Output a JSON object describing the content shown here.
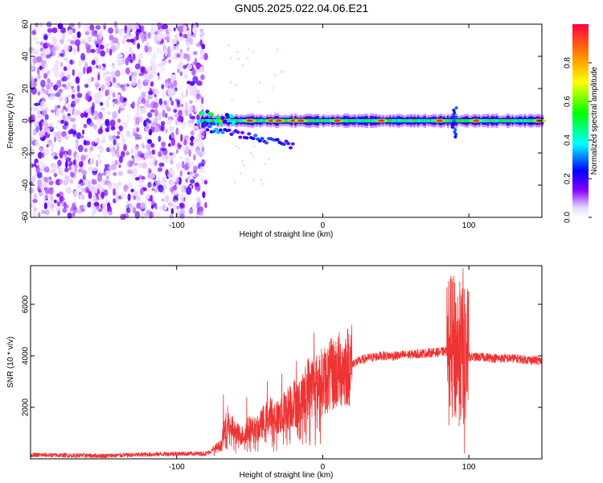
{
  "title": "GN05.2025.022.04.06.E21",
  "chart_data": [
    {
      "type": "heatmap",
      "title": "GN05.2025.022.04.06.E21",
      "xlabel": "Height of straight line (km)",
      "ylabel": "Frequency (Hz)",
      "xlim": [
        -200,
        150
      ],
      "ylim": [
        -60,
        60
      ],
      "xticks": [
        -100,
        0,
        100
      ],
      "xtick_labels": [
        "-100",
        "0",
        "100"
      ],
      "yticks": [
        -60,
        -40,
        -20,
        0,
        20,
        40,
        60
      ],
      "ytick_labels": [
        "-60",
        "-40",
        "-20",
        "0",
        "20",
        "40",
        "60"
      ],
      "colorbar": {
        "label": "Normalized spectral amplitude",
        "range": [
          0,
          1
        ],
        "ticks": [
          0.0,
          0.2,
          0.4,
          0.6,
          0.8
        ],
        "tick_labels": [
          "0.0",
          "0.2",
          "0.4",
          "0.6",
          "0.8"
        ]
      },
      "features": {
        "noise_region_x": [
          -200,
          -80
        ],
        "noise_amplitude": 0.15,
        "signal_band_center_hz": 0,
        "signal_start_x": -83,
        "signal_amplitude": 0.6,
        "peak_x": [
          -67,
          -50,
          -35,
          -30,
          -20,
          -15,
          10,
          40,
          80,
          105,
          148
        ]
      }
    },
    {
      "type": "line",
      "xlabel": "Height of straight line (km)",
      "ylabel": "SNR (10 * v/v)",
      "xlim": [
        -200,
        150
      ],
      "ylim": [
        0,
        7500
      ],
      "xticks": [
        -100,
        0,
        100
      ],
      "xtick_labels": [
        "-100",
        "0",
        "100"
      ],
      "yticks": [
        2000,
        4000,
        6000
      ],
      "ytick_labels": [
        "2000",
        "4000",
        "6000"
      ],
      "series": [
        {
          "name": "SNR",
          "color": "#ee3333",
          "x": [
            -200,
            -150,
            -100,
            -80,
            -70,
            -65,
            -60,
            -55,
            -50,
            -45,
            -40,
            -35,
            -30,
            -25,
            -20,
            -15,
            -10,
            -5,
            0,
            10,
            20,
            30,
            40,
            50,
            60,
            70,
            80,
            88,
            92,
            95,
            97,
            100,
            110,
            120,
            130,
            140,
            150
          ],
          "values": [
            150,
            120,
            200,
            200,
            500,
            1500,
            1000,
            900,
            1200,
            1100,
            1500,
            1700,
            1600,
            1900,
            2200,
            2100,
            2800,
            2900,
            3000,
            3400,
            3700,
            3900,
            4000,
            4000,
            4050,
            4100,
            4150,
            4200,
            4200,
            4000,
            3900,
            3950,
            3950,
            3900,
            3900,
            3850,
            3800
          ],
          "spikes": [
            {
              "x": -68,
              "value": 2500
            },
            {
              "x": -52,
              "value": 2400
            },
            {
              "x": -38,
              "value": 3000
            },
            {
              "x": -28,
              "value": 3300
            },
            {
              "x": -18,
              "value": 3800
            },
            {
              "x": -6,
              "value": 4900
            },
            {
              "x": 90,
              "value": 5000
            },
            {
              "x": 94,
              "value": 6500
            },
            {
              "x": 96,
              "value": 7400
            },
            {
              "x": 97,
              "value": 200
            },
            {
              "x": 99,
              "value": 6600
            }
          ]
        }
      ]
    }
  ]
}
